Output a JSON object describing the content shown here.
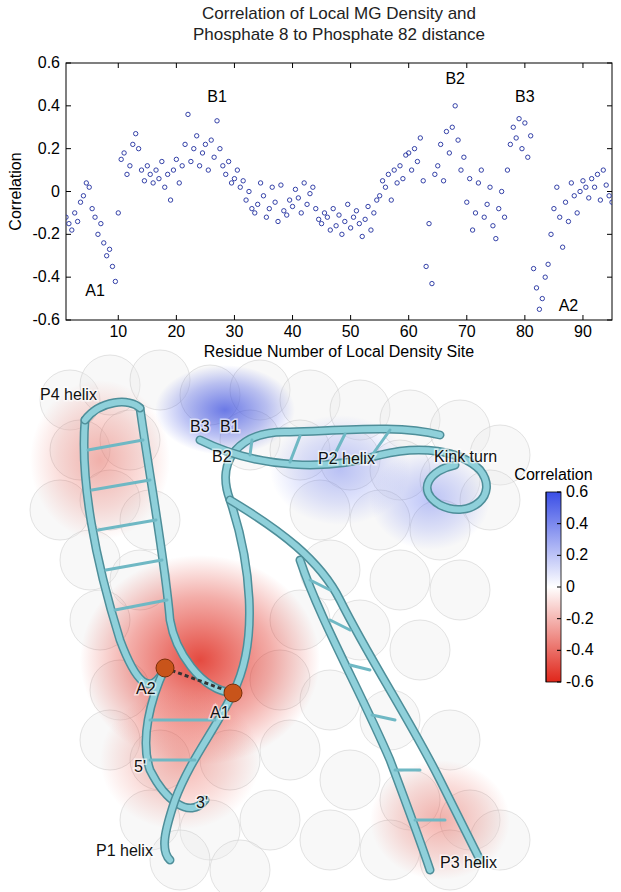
{
  "chart_data": {
    "type": "scatter",
    "title": "Correlation of Local MG Density and Phosphate 8 to Phosphate 82 distance",
    "x_label": "Residue Number of Local Density Site",
    "y_label": "Correlation",
    "color": "#1f2e9e",
    "marker": "circle",
    "xlim": [
      1,
      95
    ],
    "xticks": [
      10,
      20,
      30,
      40,
      50,
      60,
      70,
      80,
      90
    ],
    "ylim": [
      -0.6,
      0.6
    ],
    "yticks": [
      -0.6,
      -0.4,
      -0.2,
      0,
      0.2,
      0.4,
      0.6
    ],
    "x": [
      1,
      1.5,
      2,
      2.5,
      3,
      3.5,
      4,
      4.5,
      5,
      5.5,
      6,
      6.5,
      7,
      7.5,
      8,
      8.5,
      9,
      9.5,
      10,
      10.5,
      11,
      11.5,
      12,
      12.5,
      13,
      13.5,
      14,
      14.5,
      15,
      15.5,
      16,
      16.5,
      17,
      17.5,
      18,
      18.5,
      19,
      19.5,
      20,
      20.5,
      21,
      21.5,
      22,
      22.5,
      23,
      23.5,
      24,
      24.5,
      25,
      25.5,
      26,
      26.5,
      27,
      27.5,
      28,
      28.5,
      29,
      29.5,
      30,
      30.5,
      31,
      31.5,
      32,
      32.5,
      33,
      33.5,
      34,
      34.5,
      35,
      35.5,
      36,
      36.5,
      37,
      37.5,
      38,
      38.5,
      39,
      39.5,
      40,
      40.5,
      41,
      41.5,
      42,
      42.5,
      43,
      43.5,
      44,
      44.5,
      45,
      45.5,
      46,
      46.5,
      47,
      47.5,
      48,
      48.5,
      49,
      49.5,
      50,
      50.5,
      51,
      51.5,
      52,
      52.5,
      53,
      53.5,
      54,
      54.5,
      55,
      55.5,
      56,
      56.5,
      57,
      57.5,
      58,
      58.5,
      59,
      59.5,
      60,
      60.5,
      61,
      61.5,
      62,
      62.5,
      63,
      63.5,
      64,
      64.5,
      65,
      65.5,
      66,
      66.5,
      67,
      67.5,
      68,
      68.5,
      69,
      69.5,
      70,
      70.5,
      71,
      71.5,
      72,
      72.5,
      73,
      73.5,
      74,
      74.5,
      75,
      75.5,
      76,
      76.5,
      77,
      77.5,
      78,
      78.5,
      79,
      79.5,
      80,
      80.5,
      81,
      81.5,
      82,
      82.5,
      83,
      83.5,
      84,
      84.5,
      85,
      85.5,
      86,
      86.5,
      87,
      87.5,
      88,
      88.5,
      89,
      89.5,
      90,
      90.5,
      91,
      91.5,
      92,
      92.5,
      93,
      93.5,
      94,
      94.5,
      95
    ],
    "values": [
      -0.12,
      -0.15,
      -0.18,
      -0.1,
      -0.14,
      -0.05,
      -0.02,
      0.04,
      0.02,
      -0.08,
      -0.12,
      -0.2,
      -0.15,
      -0.24,
      -0.3,
      -0.27,
      -0.35,
      -0.42,
      -0.1,
      0.15,
      0.18,
      0.08,
      0.12,
      0.22,
      0.27,
      0.2,
      0.1,
      0.05,
      0.12,
      0.08,
      0.04,
      0.1,
      0.06,
      0.14,
      0.02,
      0.08,
      -0.04,
      0.1,
      0.15,
      0.04,
      0.12,
      0.22,
      0.36,
      0.14,
      0.2,
      0.26,
      0.12,
      0.18,
      0.22,
      0.1,
      0.24,
      0.16,
      0.33,
      0.2,
      0.12,
      0.08,
      0.14,
      0.04,
      0.06,
      0.1,
      0.02,
      0.05,
      -0.04,
      0.0,
      -0.08,
      -0.1,
      -0.06,
      0.04,
      -0.02,
      -0.12,
      -0.08,
      0.02,
      -0.05,
      -0.14,
      0.03,
      -0.09,
      -0.11,
      -0.04,
      -0.07,
      0.01,
      -0.03,
      -0.1,
      0.04,
      -0.06,
      -0.01,
      0.02,
      -0.08,
      -0.13,
      -0.15,
      -0.1,
      -0.12,
      -0.18,
      -0.08,
      -0.16,
      -0.11,
      -0.2,
      -0.14,
      -0.06,
      -0.17,
      -0.12,
      -0.09,
      -0.15,
      -0.21,
      -0.13,
      -0.07,
      -0.18,
      -0.1,
      -0.04,
      -0.02,
      0.05,
      0.02,
      0.08,
      -0.04,
      0.1,
      0.04,
      0.12,
      0.06,
      0.17,
      0.18,
      0.1,
      0.2,
      0.14,
      0.25,
      0.05,
      -0.35,
      -0.15,
      -0.43,
      0.08,
      0.12,
      0.22,
      0.05,
      0.28,
      0.18,
      0.3,
      0.4,
      0.24,
      0.1,
      0.16,
      -0.05,
      0.06,
      -0.18,
      -0.1,
      0.04,
      0.1,
      -0.12,
      -0.06,
      0.02,
      -0.16,
      -0.22,
      -0.08,
      0.0,
      -0.12,
      0.1,
      0.22,
      0.3,
      0.25,
      0.34,
      0.2,
      0.32,
      0.16,
      0.26,
      -0.36,
      -0.45,
      -0.55,
      -0.5,
      -0.4,
      -0.34,
      -0.2,
      -0.08,
      0.02,
      -0.12,
      -0.26,
      -0.05,
      -0.14,
      0.04,
      -0.02,
      -0.1,
      0.0,
      0.05,
      0.02,
      -0.03,
      0.06,
      0.02,
      0.08,
      -0.04,
      0.1,
      0.03,
      -0.02,
      -0.05
    ],
    "annotations": [
      {
        "text": "A1",
        "x": 6,
        "y": -0.49
      },
      {
        "text": "B1",
        "x": 27,
        "y": 0.42
      },
      {
        "text": "B2",
        "x": 68,
        "y": 0.5
      },
      {
        "text": "B3",
        "x": 80,
        "y": 0.42
      },
      {
        "text": "A2",
        "x": 87.5,
        "y": -0.56
      }
    ]
  },
  "diagram": {
    "labels": [
      "P4 helix",
      "B3",
      "B1",
      "B2",
      "P2 helix",
      "Kink turn",
      "A2",
      "A1",
      "5'",
      "3'",
      "P1 helix",
      "P3 helix"
    ],
    "colorbar": {
      "title": "Correlation",
      "range": [
        -0.6,
        0.6
      ],
      "ticks": [
        -0.6,
        -0.4,
        -0.2,
        0,
        0.2,
        0.4,
        0.6
      ]
    }
  }
}
